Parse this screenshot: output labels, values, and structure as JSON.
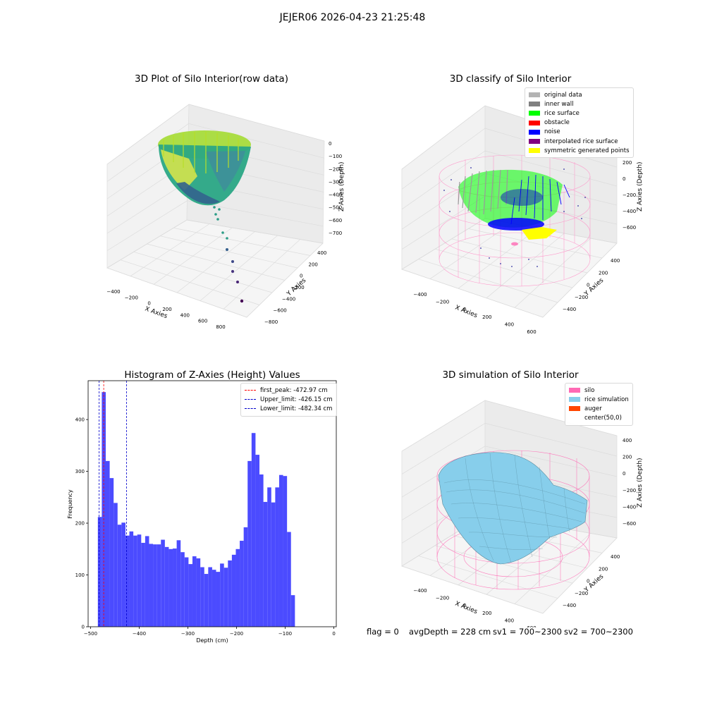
{
  "suptitle": "JEJER06 2026-04-23 21:25:48",
  "panels": {
    "raw": {
      "title": "3D Plot of Silo Interior(row data)",
      "xlabel": "X Axies",
      "ylabel": "Y Axies",
      "zlabel": "Z Axies (Depth)",
      "x_ticks": [
        "-400",
        "-200",
        "0",
        "200",
        "400",
        "600",
        "800"
      ],
      "y_ticks": [
        "400",
        "200",
        "0",
        "-200",
        "-400",
        "-600",
        "-800"
      ],
      "z_ticks": [
        "0",
        "-100",
        "-200",
        "-300",
        "-400",
        "-500",
        "-600",
        "-700"
      ]
    },
    "classify": {
      "title": "3D classify of Silo Interior",
      "xlabel": "X Axies",
      "ylabel": "Y Axies",
      "zlabel": "Z Axies (Depth)",
      "x_ticks": [
        "-400",
        "-200",
        "0",
        "200",
        "400",
        "600"
      ],
      "y_ticks": [
        "400",
        "200",
        "0",
        "-200",
        "-400"
      ],
      "z_ticks": [
        "200",
        "0",
        "-200",
        "-400",
        "-600"
      ],
      "legend": [
        {
          "label": "original data",
          "color": "#b3b3b3"
        },
        {
          "label": "inner wall",
          "color": "#808080"
        },
        {
          "label": "rice surface",
          "color": "#00ff00"
        },
        {
          "label": "obstacle",
          "color": "#ff0000"
        },
        {
          "label": "noise",
          "color": "#0000ff"
        },
        {
          "label": "interpolated rice surface",
          "color": "#800080"
        },
        {
          "label": "symmetric generated points",
          "color": "#ffff00"
        }
      ]
    },
    "simulation": {
      "title": "3D simulation of Silo Interior",
      "xlabel": "X Axies",
      "ylabel": "Y Axies",
      "zlabel": "Z Axies (Depth)",
      "x_ticks": [
        "-400",
        "-200",
        "0",
        "200",
        "400",
        "600"
      ],
      "y_ticks": [
        "400",
        "200",
        "0",
        "-200",
        "-400"
      ],
      "z_ticks": [
        "400",
        "200",
        "0",
        "-200",
        "-400",
        "-600"
      ],
      "legend": [
        {
          "label": "silo",
          "color": "#ff69b4"
        },
        {
          "label": "rice simulation",
          "color": "#87ceeb"
        },
        {
          "label": "auger",
          "color": "#ff4500"
        },
        {
          "label": "center(50,0)",
          "color": "#ffffff"
        }
      ]
    }
  },
  "status": {
    "flag": "flag = 0",
    "avg": "avgDepth = 228 cm",
    "sv1": "sv1 = 700~2300",
    "sv2": "sv2 = 700~2300"
  },
  "chart_data": [
    {
      "type": "bar",
      "title": "Histogram of Z-Axies (Height) Values",
      "xlabel": "Depth (cm)",
      "ylabel": "Frequency",
      "xlim": [
        -505,
        5
      ],
      "ylim": [
        0,
        475
      ],
      "x_ticks": [
        -500,
        -400,
        -300,
        -200,
        -100,
        0
      ],
      "y_ticks": [
        0,
        100,
        200,
        300,
        400
      ],
      "bar_color": "#4b4bff",
      "bin_start": -485,
      "bin_width": 8.1,
      "values": [
        212,
        453,
        320,
        287,
        239,
        197,
        201,
        176,
        184,
        176,
        178,
        162,
        175,
        160,
        159,
        159,
        168,
        154,
        150,
        151,
        167,
        144,
        134,
        121,
        136,
        132,
        115,
        102,
        115,
        110,
        106,
        122,
        114,
        128,
        139,
        150,
        166,
        192,
        320,
        374,
        332,
        294,
        241,
        269,
        240,
        269,
        293,
        291,
        183,
        61
      ],
      "vlines": [
        {
          "label": "first_peak: -472.97 cm",
          "x": -472.97,
          "color": "#ff0000"
        },
        {
          "label": "Upper_limit: -426.15 cm",
          "x": -426.15,
          "color": "#0000cc"
        },
        {
          "label": "Lower_limit: -482.34 cm",
          "x": -482.34,
          "color": "#0000cc"
        }
      ],
      "legend_position": "top-right"
    }
  ]
}
